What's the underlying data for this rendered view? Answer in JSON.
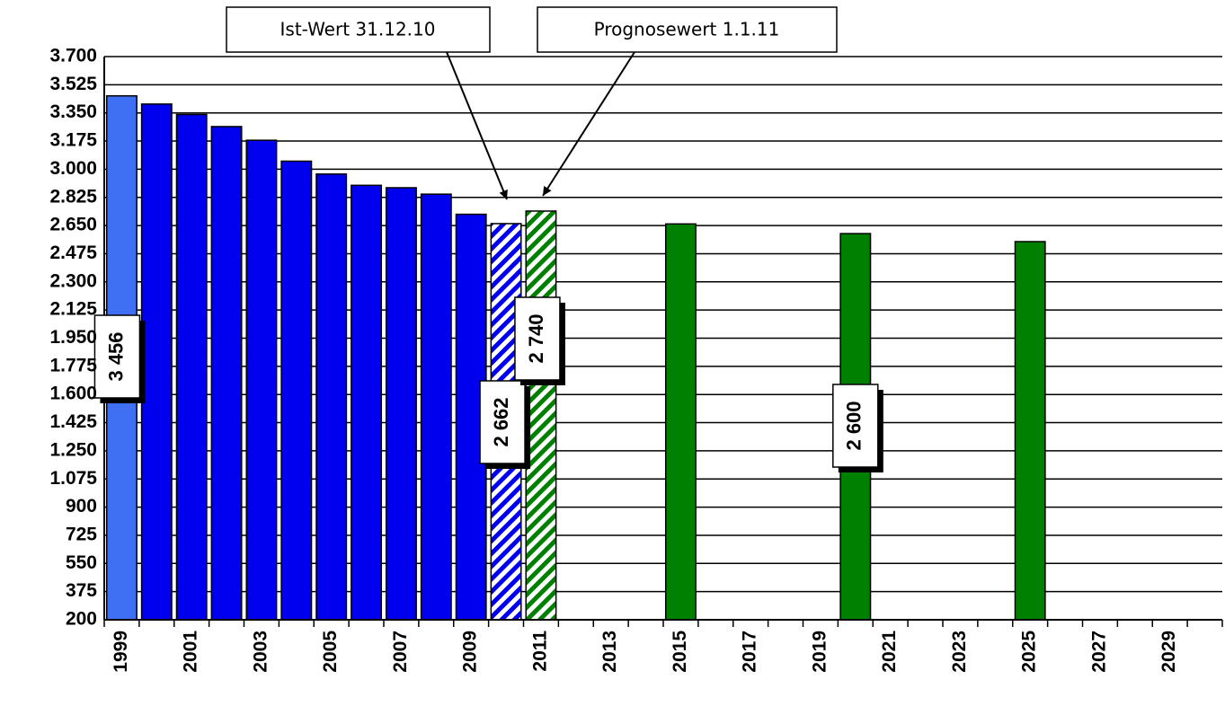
{
  "chart_data": {
    "type": "bar",
    "categories": [
      "1999",
      null,
      "2001",
      null,
      "2003",
      null,
      "2005",
      null,
      "2007",
      null,
      "2009",
      null,
      "2011",
      null,
      "2013",
      null,
      "2015",
      null,
      "2017",
      null,
      "2019",
      null,
      "2021",
      null,
      "2023",
      null,
      "2025",
      null,
      "2027",
      null,
      "2029",
      null
    ],
    "values": [
      3456,
      3405,
      3340,
      3265,
      3180,
      3050,
      2970,
      2900,
      2885,
      2845,
      2720,
      2662,
      2740,
      null,
      null,
      null,
      2660,
      null,
      null,
      null,
      null,
      2600,
      null,
      null,
      null,
      null,
      2550,
      null,
      null,
      null,
      null,
      null
    ],
    "value_labels": [
      "3 456",
      null,
      null,
      null,
      null,
      null,
      null,
      null,
      null,
      null,
      null,
      "2 662",
      "2 740",
      null,
      null,
      null,
      null,
      null,
      null,
      null,
      null,
      "2 600",
      null,
      null,
      null,
      null,
      null,
      null,
      null,
      null,
      null,
      null
    ],
    "colors": [
      "#3f6ff2",
      "#0000ee",
      "#0000ee",
      "#0000ee",
      "#0000ee",
      "#0000ee",
      "#0000ee",
      "#0000ee",
      "#0000ee",
      "#0000ee",
      "#0000ee",
      "#0000ee",
      "#008000",
      null,
      null,
      null,
      "#008000",
      null,
      null,
      null,
      null,
      "#008000",
      null,
      null,
      null,
      null,
      "#008000",
      null,
      null,
      null,
      null,
      null
    ],
    "hatched": [
      false,
      false,
      false,
      false,
      false,
      false,
      false,
      false,
      false,
      false,
      false,
      true,
      true,
      false,
      false,
      false,
      false,
      false,
      false,
      false,
      false,
      false,
      false,
      false,
      false,
      false,
      false,
      false,
      false,
      false,
      false,
      false
    ],
    "annotations": [
      "Ist-Wert 31.12.10",
      "Prognosewert 1.1.11"
    ],
    "ylim": [
      200,
      3700
    ],
    "yticks": [
      200,
      375,
      550,
      725,
      900,
      {
        "value": 1075,
        "label": "1.075"
      },
      {
        "value": 1250,
        "label": "1.250"
      },
      {
        "value": 1425,
        "label": "1.425"
      },
      {
        "value": 1600,
        "label": "1.600"
      },
      {
        "value": 1775,
        "label": "1.775"
      },
      {
        "value": 1950,
        "label": "1.950"
      },
      {
        "value": 2125,
        "label": "2.125"
      },
      {
        "value": 2300,
        "label": "2.300"
      },
      {
        "value": 2475,
        "label": "2.475"
      },
      {
        "value": 2650,
        "label": "2.650"
      },
      {
        "value": 2825,
        "label": "2.825"
      },
      {
        "value": 3000,
        "label": "3.000"
      },
      {
        "value": 3175,
        "label": "3.175"
      },
      {
        "value": 3350,
        "label": "3.350"
      },
      {
        "value": 3525,
        "label": "3.525"
      },
      {
        "value": 3700,
        "label": "3.700"
      }
    ],
    "grid": true
  }
}
